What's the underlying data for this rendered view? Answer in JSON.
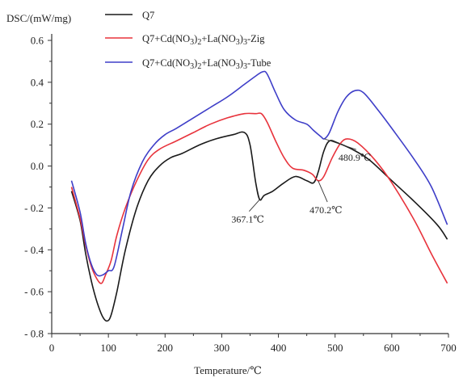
{
  "chart_data": {
    "type": "line",
    "title": "",
    "xlabel": "Temperature/℃",
    "ylabel": "DSC/(mW/mg)",
    "xlim": [
      0,
      700
    ],
    "ylim": [
      -0.8,
      0.6
    ],
    "x_ticks": [
      0,
      100,
      200,
      300,
      400,
      500,
      600,
      700
    ],
    "x_tick_labels": [
      "0",
      "100",
      "200",
      "300",
      "400",
      "500",
      "600",
      "700"
    ],
    "y_ticks": [
      -0.8,
      -0.6,
      -0.4,
      -0.2,
      0.0,
      0.2,
      0.4,
      0.6
    ],
    "y_tick_labels": [
      "- 0.8",
      "- 0.6",
      "- 0.4",
      "- 0.2",
      "0.0",
      "0.2",
      "0.4",
      "0.6"
    ],
    "grid": false,
    "legend_position": "top",
    "series": [
      {
        "name": "Q7",
        "color": "#1a1a1a",
        "legend_parts": [
          {
            "t": "Q7",
            "sub": false
          }
        ],
        "points": [
          [
            35,
            -0.12
          ],
          [
            50,
            -0.26
          ],
          [
            60,
            -0.42
          ],
          [
            70,
            -0.55
          ],
          [
            80,
            -0.65
          ],
          [
            90,
            -0.72
          ],
          [
            98,
            -0.74
          ],
          [
            105,
            -0.71
          ],
          [
            115,
            -0.6
          ],
          [
            130,
            -0.4
          ],
          [
            150,
            -0.2
          ],
          [
            170,
            -0.07
          ],
          [
            190,
            0.0
          ],
          [
            210,
            0.04
          ],
          [
            230,
            0.06
          ],
          [
            260,
            0.1
          ],
          [
            290,
            0.13
          ],
          [
            320,
            0.15
          ],
          [
            340,
            0.16
          ],
          [
            350,
            0.1
          ],
          [
            360,
            -0.08
          ],
          [
            367,
            -0.16
          ],
          [
            375,
            -0.14
          ],
          [
            390,
            -0.12
          ],
          [
            410,
            -0.08
          ],
          [
            430,
            -0.05
          ],
          [
            450,
            -0.07
          ],
          [
            462,
            -0.08
          ],
          [
            470,
            -0.03
          ],
          [
            480,
            0.07
          ],
          [
            490,
            0.12
          ],
          [
            505,
            0.11
          ],
          [
            530,
            0.08
          ],
          [
            560,
            0.03
          ],
          [
            600,
            -0.07
          ],
          [
            640,
            -0.17
          ],
          [
            680,
            -0.28
          ],
          [
            698,
            -0.35
          ]
        ]
      },
      {
        "name": "Q7+Cd(NO3)2+La(NO3)3-Zig",
        "color": "#e8333c",
        "legend_parts": [
          {
            "t": "Q7+Cd(NO",
            "sub": false
          },
          {
            "t": "3",
            "sub": true
          },
          {
            "t": ")",
            "sub": false
          },
          {
            "t": "2",
            "sub": true
          },
          {
            "t": "+La(NO",
            "sub": false
          },
          {
            "t": "3",
            "sub": true
          },
          {
            "t": ")",
            "sub": false
          },
          {
            "t": "3",
            "sub": true
          },
          {
            "t": "-Zig",
            "sub": false
          }
        ],
        "points": [
          [
            35,
            -0.1
          ],
          [
            50,
            -0.25
          ],
          [
            60,
            -0.38
          ],
          [
            70,
            -0.48
          ],
          [
            80,
            -0.54
          ],
          [
            88,
            -0.56
          ],
          [
            95,
            -0.52
          ],
          [
            105,
            -0.45
          ],
          [
            115,
            -0.33
          ],
          [
            130,
            -0.2
          ],
          [
            150,
            -0.07
          ],
          [
            170,
            0.03
          ],
          [
            190,
            0.08
          ],
          [
            220,
            0.12
          ],
          [
            250,
            0.16
          ],
          [
            280,
            0.2
          ],
          [
            310,
            0.23
          ],
          [
            340,
            0.25
          ],
          [
            360,
            0.25
          ],
          [
            370,
            0.25
          ],
          [
            380,
            0.21
          ],
          [
            395,
            0.12
          ],
          [
            410,
            0.04
          ],
          [
            425,
            -0.01
          ],
          [
            445,
            -0.02
          ],
          [
            460,
            -0.04
          ],
          [
            470,
            -0.07
          ],
          [
            480,
            -0.05
          ],
          [
            495,
            0.04
          ],
          [
            510,
            0.11
          ],
          [
            522,
            0.13
          ],
          [
            540,
            0.11
          ],
          [
            570,
            0.03
          ],
          [
            600,
            -0.08
          ],
          [
            640,
            -0.26
          ],
          [
            670,
            -0.42
          ],
          [
            698,
            -0.56
          ]
        ]
      },
      {
        "name": "Q7+Cd(NO3)2+La(NO3)3-Tube",
        "color": "#3e3ec8",
        "legend_parts": [
          {
            "t": "Q7+Cd(NO",
            "sub": false
          },
          {
            "t": "3",
            "sub": true
          },
          {
            "t": ")",
            "sub": false
          },
          {
            "t": "2",
            "sub": true
          },
          {
            "t": "+La(NO",
            "sub": false
          },
          {
            "t": "3",
            "sub": true
          },
          {
            "t": ")",
            "sub": false
          },
          {
            "t": "3",
            "sub": true
          },
          {
            "t": "-Tube",
            "sub": false
          }
        ],
        "points": [
          [
            35,
            -0.07
          ],
          [
            50,
            -0.22
          ],
          [
            60,
            -0.37
          ],
          [
            70,
            -0.47
          ],
          [
            80,
            -0.52
          ],
          [
            90,
            -0.52
          ],
          [
            100,
            -0.5
          ],
          [
            110,
            -0.48
          ],
          [
            125,
            -0.3
          ],
          [
            140,
            -0.12
          ],
          [
            160,
            0.02
          ],
          [
            180,
            0.1
          ],
          [
            200,
            0.15
          ],
          [
            220,
            0.18
          ],
          [
            250,
            0.23
          ],
          [
            280,
            0.28
          ],
          [
            310,
            0.33
          ],
          [
            340,
            0.39
          ],
          [
            360,
            0.43
          ],
          [
            372,
            0.45
          ],
          [
            380,
            0.44
          ],
          [
            395,
            0.35
          ],
          [
            410,
            0.27
          ],
          [
            430,
            0.22
          ],
          [
            450,
            0.2
          ],
          [
            462,
            0.17
          ],
          [
            475,
            0.14
          ],
          [
            481,
            0.13
          ],
          [
            490,
            0.16
          ],
          [
            505,
            0.26
          ],
          [
            520,
            0.33
          ],
          [
            535,
            0.36
          ],
          [
            550,
            0.35
          ],
          [
            575,
            0.27
          ],
          [
            600,
            0.18
          ],
          [
            640,
            0.03
          ],
          [
            670,
            -0.1
          ],
          [
            698,
            -0.28
          ]
        ]
      }
    ],
    "annotations": [
      {
        "text": "367.1℃",
        "x": 367,
        "y": -0.16,
        "label_x": 317,
        "label_y": -0.255
      },
      {
        "text": "470.2℃",
        "x": 470,
        "y": -0.07,
        "label_x": 455,
        "label_y": -0.21
      },
      {
        "text": "480.9℃",
        "x": 481,
        "y": 0.13,
        "label_x": 506,
        "label_y": 0.04
      }
    ]
  }
}
